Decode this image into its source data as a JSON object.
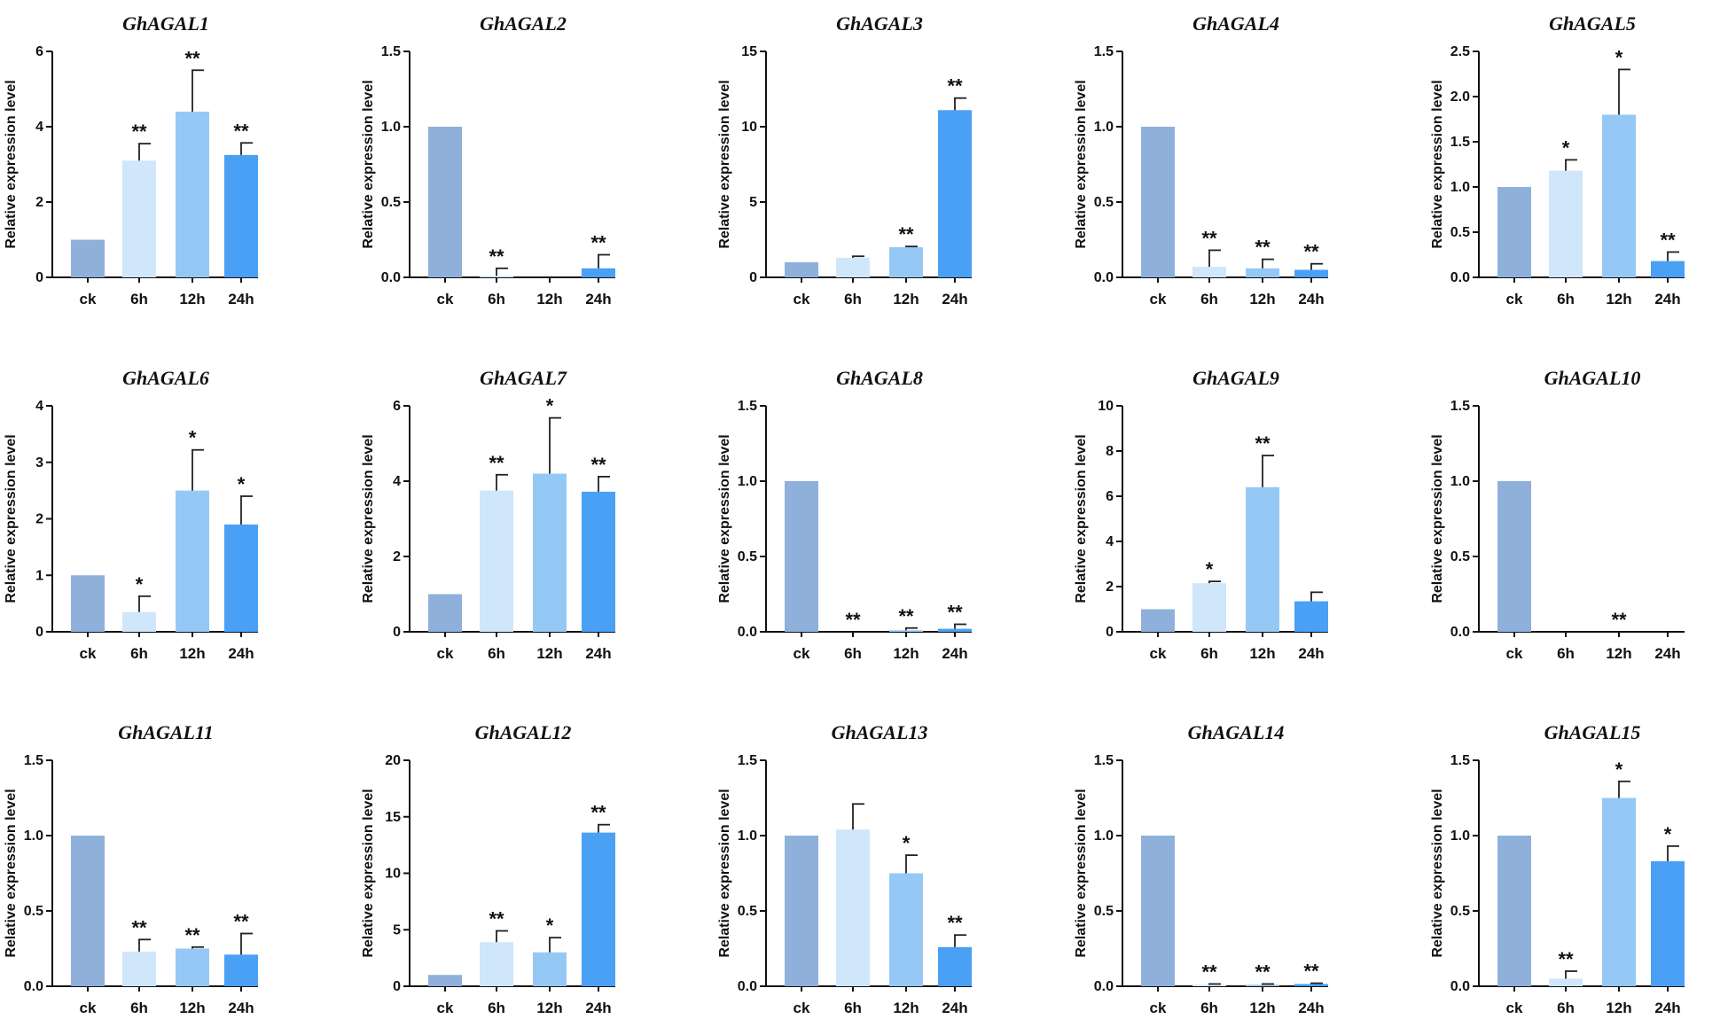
{
  "figure": {
    "ylabel": "Relative expression level",
    "categories": [
      "ck",
      "6h",
      "12h",
      "24h"
    ],
    "colors": [
      "#8fb0da",
      "#cfe6fb",
      "#96c8f6",
      "#4aa0f5"
    ]
  },
  "chart_data": [
    {
      "type": "bar",
      "title": "GhAGAL1",
      "categories": [
        "ck",
        "6h",
        "12h",
        "24h"
      ],
      "values": [
        1.0,
        3.1,
        4.4,
        3.25
      ],
      "errors": [
        0,
        0.45,
        1.1,
        0.32
      ],
      "significance": [
        "",
        "**",
        "**",
        "**"
      ],
      "ylabel": "Relative expression level",
      "ylim": [
        0,
        6
      ],
      "yticks": [
        0,
        2,
        4,
        6
      ],
      "tick_labels": [
        "0",
        "2",
        "4",
        "6"
      ]
    },
    {
      "type": "bar",
      "title": "GhAGAL2",
      "categories": [
        "ck",
        "6h",
        "12h",
        "24h"
      ],
      "values": [
        1.0,
        0.01,
        0.0,
        0.06
      ],
      "errors": [
        0,
        0.05,
        0,
        0.09
      ],
      "significance": [
        "",
        "**",
        "",
        "**"
      ],
      "ylabel": "Relative expression level",
      "ylim": [
        0,
        1.5
      ],
      "yticks": [
        0,
        0.5,
        1,
        1.5
      ],
      "tick_labels": [
        "0.0",
        "0.5",
        "1.0",
        "1.5"
      ]
    },
    {
      "type": "bar",
      "title": "GhAGAL3",
      "categories": [
        "ck",
        "6h",
        "12h",
        "24h"
      ],
      "values": [
        1.0,
        1.3,
        2.0,
        11.1
      ],
      "errors": [
        0,
        0.1,
        0.05,
        0.8
      ],
      "significance": [
        "",
        "",
        "**",
        "**"
      ],
      "ylabel": "Relative expression level",
      "ylim": [
        0,
        15
      ],
      "yticks": [
        0,
        5,
        10,
        15
      ],
      "tick_labels": [
        "0",
        "5",
        "10",
        "15"
      ]
    },
    {
      "type": "bar",
      "title": "GhAGAL4",
      "categories": [
        "ck",
        "6h",
        "12h",
        "24h"
      ],
      "values": [
        1.0,
        0.07,
        0.06,
        0.05
      ],
      "errors": [
        0,
        0.11,
        0.06,
        0.04
      ],
      "significance": [
        "",
        "**",
        "**",
        "**"
      ],
      "ylabel": "Relative expression level",
      "ylim": [
        0,
        1.5
      ],
      "yticks": [
        0,
        0.5,
        1,
        1.5
      ],
      "tick_labels": [
        "0.0",
        "0.5",
        "1.0",
        "1.5"
      ]
    },
    {
      "type": "bar",
      "title": "GhAGAL5",
      "categories": [
        "ck",
        "6h",
        "12h",
        "24h"
      ],
      "values": [
        1.0,
        1.18,
        1.8,
        0.18
      ],
      "errors": [
        0,
        0.12,
        0.5,
        0.1
      ],
      "significance": [
        "",
        "*",
        "*",
        "**"
      ],
      "ylabel": "Relative expression level",
      "ylim": [
        0,
        2.5
      ],
      "yticks": [
        0,
        0.5,
        1,
        1.5,
        2,
        2.5
      ],
      "tick_labels": [
        "0.0",
        "0.5",
        "1.0",
        "1.5",
        "2.0",
        "2.5"
      ]
    },
    {
      "type": "bar",
      "title": "GhAGAL6",
      "categories": [
        "ck",
        "6h",
        "12h",
        "24h"
      ],
      "values": [
        1.0,
        0.35,
        2.5,
        1.9
      ],
      "errors": [
        0,
        0.28,
        0.72,
        0.5
      ],
      "significance": [
        "",
        "*",
        "*",
        "*"
      ],
      "ylabel": "Relative expression level",
      "ylim": [
        0,
        4
      ],
      "yticks": [
        0,
        1,
        2,
        3,
        4
      ],
      "tick_labels": [
        "0",
        "1",
        "2",
        "3",
        "4"
      ]
    },
    {
      "type": "bar",
      "title": "GhAGAL7",
      "categories": [
        "ck",
        "6h",
        "12h",
        "24h"
      ],
      "values": [
        1.0,
        3.75,
        4.2,
        3.72
      ],
      "errors": [
        0,
        0.42,
        1.48,
        0.4
      ],
      "significance": [
        "",
        "**",
        "*",
        "**"
      ],
      "ylabel": "Relative expression level",
      "ylim": [
        0,
        6
      ],
      "yticks": [
        0,
        2,
        4,
        6
      ],
      "tick_labels": [
        "0",
        "2",
        "4",
        "6"
      ]
    },
    {
      "type": "bar",
      "title": "GhAGAL8",
      "categories": [
        "ck",
        "6h",
        "12h",
        "24h"
      ],
      "values": [
        1.0,
        0.0,
        0.01,
        0.02
      ],
      "errors": [
        0,
        0,
        0.015,
        0.03
      ],
      "significance": [
        "",
        "**",
        "**",
        "**"
      ],
      "ylabel": "Relative expression level",
      "ylim": [
        0,
        1.5
      ],
      "yticks": [
        0,
        0.5,
        1,
        1.5
      ],
      "tick_labels": [
        "0.0",
        "0.5",
        "1.0",
        "1.5"
      ]
    },
    {
      "type": "bar",
      "title": "GhAGAL9",
      "categories": [
        "ck",
        "6h",
        "12h",
        "24h"
      ],
      "values": [
        1.0,
        2.15,
        6.4,
        1.35
      ],
      "errors": [
        0,
        0.08,
        1.4,
        0.4
      ],
      "significance": [
        "",
        "*",
        "**",
        ""
      ],
      "ylabel": "Relative expression level",
      "ylim": [
        0,
        10
      ],
      "yticks": [
        0,
        2,
        4,
        6,
        8,
        10
      ],
      "tick_labels": [
        "0",
        "2",
        "4",
        "6",
        "8",
        "10"
      ]
    },
    {
      "type": "bar",
      "title": "GhAGAL10",
      "categories": [
        "ck",
        "6h",
        "12h",
        "24h"
      ],
      "values": [
        1.0,
        0.0,
        0.0,
        0.0
      ],
      "errors": [
        0,
        0,
        0,
        0
      ],
      "significance": [
        "",
        "",
        "**",
        ""
      ],
      "ylabel": "Relative expression level",
      "ylim": [
        0,
        1.5
      ],
      "yticks": [
        0,
        0.5,
        1,
        1.5
      ],
      "tick_labels": [
        "0.0",
        "0.5",
        "1.0",
        "1.5"
      ]
    },
    {
      "type": "bar",
      "title": "GhAGAL11",
      "categories": [
        "ck",
        "6h",
        "12h",
        "24h"
      ],
      "values": [
        1.0,
        0.23,
        0.25,
        0.21
      ],
      "errors": [
        0,
        0.08,
        0.01,
        0.14
      ],
      "significance": [
        "",
        "**",
        "**",
        "**"
      ],
      "ylabel": "Relative expression level",
      "ylim": [
        0,
        1.5
      ],
      "yticks": [
        0,
        0.5,
        1,
        1.5
      ],
      "tick_labels": [
        "0.0",
        "0.5",
        "1.0",
        "1.5"
      ]
    },
    {
      "type": "bar",
      "title": "GhAGAL12",
      "categories": [
        "ck",
        "6h",
        "12h",
        "24h"
      ],
      "values": [
        1.0,
        3.9,
        3.0,
        13.6
      ],
      "errors": [
        0,
        1.0,
        1.3,
        0.7
      ],
      "significance": [
        "",
        "**",
        "*",
        "**"
      ],
      "ylabel": "Relative expression level",
      "ylim": [
        0,
        20
      ],
      "yticks": [
        0,
        5,
        10,
        15,
        20
      ],
      "tick_labels": [
        "0",
        "5",
        "10",
        "15",
        "20"
      ]
    },
    {
      "type": "bar",
      "title": "GhAGAL13",
      "categories": [
        "ck",
        "6h",
        "12h",
        "24h"
      ],
      "values": [
        1.0,
        1.04,
        0.75,
        0.26
      ],
      "errors": [
        0,
        0.17,
        0.12,
        0.08
      ],
      "significance": [
        "",
        "",
        "*",
        "**"
      ],
      "ylabel": "Relative expression level",
      "ylim": [
        0,
        1.5
      ],
      "yticks": [
        0,
        0.5,
        1,
        1.5
      ],
      "tick_labels": [
        "0.0",
        "0.5",
        "1.0",
        "1.5"
      ]
    },
    {
      "type": "bar",
      "title": "GhAGAL14",
      "categories": [
        "ck",
        "6h",
        "12h",
        "24h"
      ],
      "values": [
        1.0,
        0.01,
        0.01,
        0.015
      ],
      "errors": [
        0,
        0.005,
        0.005,
        0.005
      ],
      "significance": [
        "",
        "**",
        "**",
        "**"
      ],
      "ylabel": "Relative expression level",
      "ylim": [
        0,
        1.5
      ],
      "yticks": [
        0,
        0.5,
        1,
        1.5
      ],
      "tick_labels": [
        "0.0",
        "0.5",
        "1.0",
        "1.5"
      ]
    },
    {
      "type": "bar",
      "title": "GhAGAL15",
      "categories": [
        "ck",
        "6h",
        "12h",
        "24h"
      ],
      "values": [
        1.0,
        0.05,
        1.25,
        0.83
      ],
      "errors": [
        0,
        0.05,
        0.11,
        0.1
      ],
      "significance": [
        "",
        "**",
        "*",
        "*"
      ],
      "ylabel": "Relative expression level",
      "ylim": [
        0,
        1.5
      ],
      "yticks": [
        0,
        0.5,
        1,
        1.5
      ],
      "tick_labels": [
        "0.0",
        "0.5",
        "1.0",
        "1.5"
      ]
    }
  ]
}
